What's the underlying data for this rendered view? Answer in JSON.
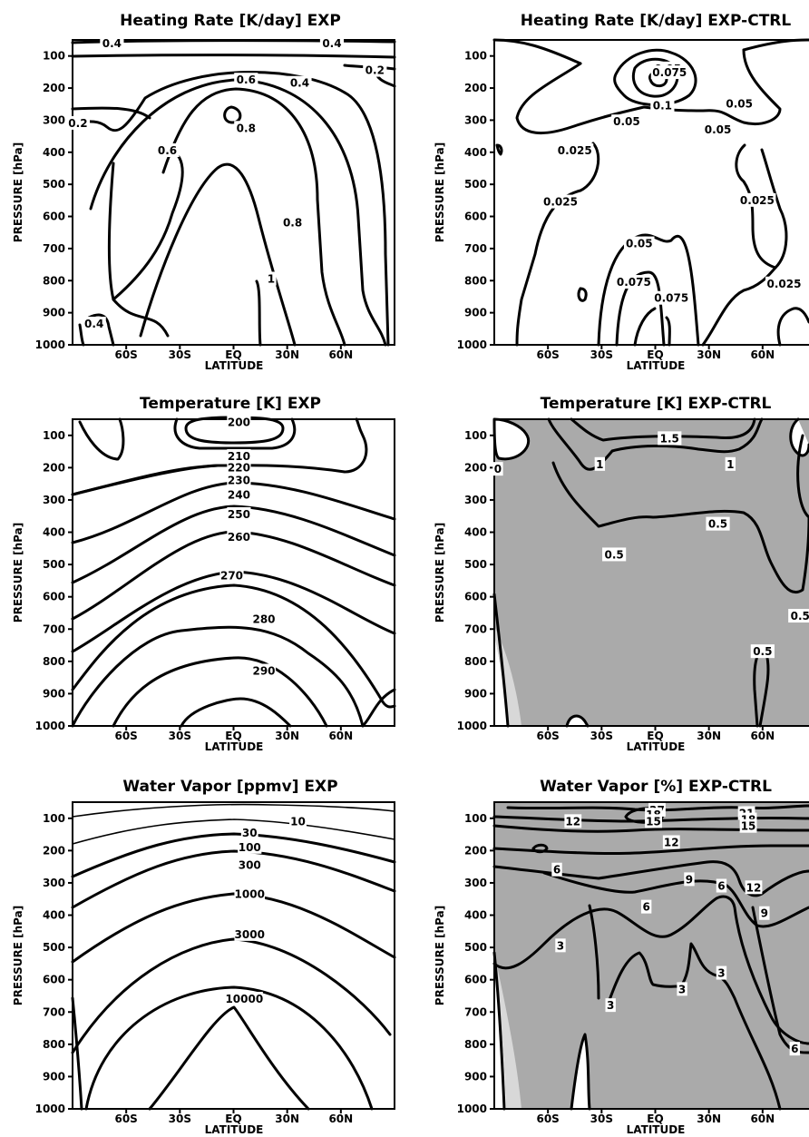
{
  "figure": {
    "x_axis": {
      "label": "LATITUDE",
      "ticks": [
        {
          "label": "60S",
          "lat": -60
        },
        {
          "label": "30S",
          "lat": -30
        },
        {
          "label": "EQ",
          "lat": 0
        },
        {
          "label": "30N",
          "lat": 30
        },
        {
          "label": "60N",
          "lat": 60
        }
      ]
    },
    "y_axis": {
      "label": "PRESSURE [hPa]",
      "ticks": [
        100,
        200,
        300,
        400,
        500,
        600,
        700,
        800,
        900,
        1000
      ]
    }
  },
  "chart_data": [
    {
      "id": "hr_exp",
      "type": "contour",
      "title": "Heating Rate [K/day] EXP",
      "xlabel": "LATITUDE",
      "ylabel": "PRESSURE [hPa]",
      "ylim": [
        1000,
        50
      ],
      "shaded": false,
      "levels": [
        0.2,
        0.4,
        0.6,
        0.8,
        1
      ],
      "contour_labels": [
        {
          "text": "0.4",
          "lat": -68,
          "p": 62
        },
        {
          "text": "0.4",
          "lat": 55,
          "p": 62
        },
        {
          "text": "0.2",
          "lat": 79,
          "p": 145
        },
        {
          "text": "0.6",
          "lat": 7,
          "p": 175
        },
        {
          "text": "0.4",
          "lat": 37,
          "p": 185
        },
        {
          "text": "0.2",
          "lat": -87,
          "p": 310
        },
        {
          "text": "0.8",
          "lat": 7,
          "p": 325
        },
        {
          "text": "0.6",
          "lat": -37,
          "p": 395
        },
        {
          "text": "0.8",
          "lat": 33,
          "p": 620
        },
        {
          "text": "1",
          "lat": 21,
          "p": 795
        },
        {
          "text": "0.4",
          "lat": -78,
          "p": 935
        }
      ]
    },
    {
      "id": "hr_diff",
      "type": "contour",
      "title": "Heating Rate [K/day] EXP-CTRL",
      "xlabel": "LATITUDE",
      "ylabel": "PRESSURE [hPa]",
      "ylim": [
        1000,
        50
      ],
      "shaded": false,
      "levels": [
        0.025,
        0.05,
        0.075,
        0.1
      ],
      "contour_labels": [
        {
          "text": "0.05",
          "lat": 7,
          "p": 140
        },
        {
          "text": "0.075",
          "lat": 8,
          "p": 152
        },
        {
          "text": "0.1",
          "lat": 4,
          "p": 255
        },
        {
          "text": "0.05",
          "lat": 47,
          "p": 250
        },
        {
          "text": "0.05",
          "lat": -16,
          "p": 305
        },
        {
          "text": "0.05",
          "lat": 35,
          "p": 330
        },
        {
          "text": "0.025",
          "lat": -45,
          "p": 395
        },
        {
          "text": "0.025",
          "lat": -53,
          "p": 555
        },
        {
          "text": "0.025",
          "lat": 57,
          "p": 550
        },
        {
          "text": "0.05",
          "lat": -9,
          "p": 685
        },
        {
          "text": "0.075",
          "lat": -12,
          "p": 805
        },
        {
          "text": "0.075",
          "lat": 9,
          "p": 855
        },
        {
          "text": "0.025",
          "lat": 72,
          "p": 810
        }
      ]
    },
    {
      "id": "t_exp",
      "type": "contour",
      "title": "Temperature [K] EXP",
      "xlabel": "LATITUDE",
      "ylabel": "PRESSURE [hPa]",
      "ylim": [
        1000,
        50
      ],
      "shaded": false,
      "levels": [
        200,
        210,
        220,
        230,
        240,
        250,
        260,
        270,
        280,
        290
      ],
      "contour_labels": [
        {
          "text": "200",
          "lat": 3,
          "p": 60
        },
        {
          "text": "210",
          "lat": 3,
          "p": 165
        },
        {
          "text": "220",
          "lat": 3,
          "p": 200
        },
        {
          "text": "230",
          "lat": 3,
          "p": 240
        },
        {
          "text": "240",
          "lat": 3,
          "p": 285
        },
        {
          "text": "250",
          "lat": 3,
          "p": 345
        },
        {
          "text": "260",
          "lat": 3,
          "p": 415
        },
        {
          "text": "270",
          "lat": -1,
          "p": 535
        },
        {
          "text": "280",
          "lat": 17,
          "p": 670
        },
        {
          "text": "290",
          "lat": 17,
          "p": 830
        }
      ]
    },
    {
      "id": "t_diff",
      "type": "contour",
      "title": "Temperature [K] EXP-CTRL",
      "xlabel": "LATITUDE",
      "ylabel": "PRESSURE [hPa]",
      "ylim": [
        1000,
        50
      ],
      "shaded": true,
      "shading": "positive values shaded grey",
      "levels": [
        0,
        0.5,
        1,
        1.5
      ],
      "contour_labels": [
        {
          "text": "1.5",
          "lat": 8,
          "p": 110
        },
        {
          "text": "0",
          "lat": -88,
          "p": 205
        },
        {
          "text": "1",
          "lat": -31,
          "p": 190
        },
        {
          "text": "1",
          "lat": 42,
          "p": 190
        },
        {
          "text": "0.5",
          "lat": 35,
          "p": 375
        },
        {
          "text": "0.5",
          "lat": -23,
          "p": 470
        },
        {
          "text": "0.5",
          "lat": 81,
          "p": 660
        },
        {
          "text": "0.5",
          "lat": 60,
          "p": 770
        }
      ]
    },
    {
      "id": "wv_exp",
      "type": "contour",
      "title": "Water Vapor [ppmv] EXP",
      "xlabel": "LATITUDE",
      "ylabel": "PRESSURE [hPa]",
      "ylim": [
        1000,
        50
      ],
      "shaded": false,
      "levels": [
        10,
        30,
        100,
        300,
        1000,
        3000,
        10000
      ],
      "contour_labels": [
        {
          "text": "10",
          "lat": 36,
          "p": 110
        },
        {
          "text": "30",
          "lat": 9,
          "p": 145
        },
        {
          "text": "100",
          "lat": 9,
          "p": 190
        },
        {
          "text": "300",
          "lat": 9,
          "p": 245
        },
        {
          "text": "1000",
          "lat": 9,
          "p": 335
        },
        {
          "text": "3000",
          "lat": 9,
          "p": 460
        },
        {
          "text": "10000",
          "lat": 6,
          "p": 660
        }
      ]
    },
    {
      "id": "wv_diff",
      "type": "contour",
      "title": "Water Vapor [%] EXP-CTRL",
      "xlabel": "LATITUDE",
      "ylabel": "PRESSURE [hPa]",
      "ylim": [
        1000,
        50
      ],
      "shaded": true,
      "shading": "positive values shaded grey",
      "levels": [
        3,
        6,
        9,
        12,
        15,
        18,
        21,
        27
      ],
      "contour_labels": [
        {
          "text": "27",
          "lat": 1,
          "p": 75
        },
        {
          "text": "18",
          "lat": -1,
          "p": 90
        },
        {
          "text": "15",
          "lat": -1,
          "p": 110
        },
        {
          "text": "12",
          "lat": -46,
          "p": 110
        },
        {
          "text": "21",
          "lat": 51,
          "p": 85
        },
        {
          "text": "18",
          "lat": 52,
          "p": 105
        },
        {
          "text": "15",
          "lat": 52,
          "p": 125
        },
        {
          "text": "12",
          "lat": 9,
          "p": 175
        },
        {
          "text": "6",
          "lat": -55,
          "p": 260
        },
        {
          "text": "9",
          "lat": 19,
          "p": 290
        },
        {
          "text": "6",
          "lat": 37,
          "p": 310
        },
        {
          "text": "12",
          "lat": 55,
          "p": 315
        },
        {
          "text": "6",
          "lat": -5,
          "p": 375
        },
        {
          "text": "9",
          "lat": 61,
          "p": 395
        },
        {
          "text": "3",
          "lat": -53,
          "p": 495
        },
        {
          "text": "3",
          "lat": 37,
          "p": 580
        },
        {
          "text": "3",
          "lat": 15,
          "p": 630
        },
        {
          "text": "3",
          "lat": -25,
          "p": 680
        },
        {
          "text": "6",
          "lat": 78,
          "p": 815
        }
      ]
    }
  ]
}
